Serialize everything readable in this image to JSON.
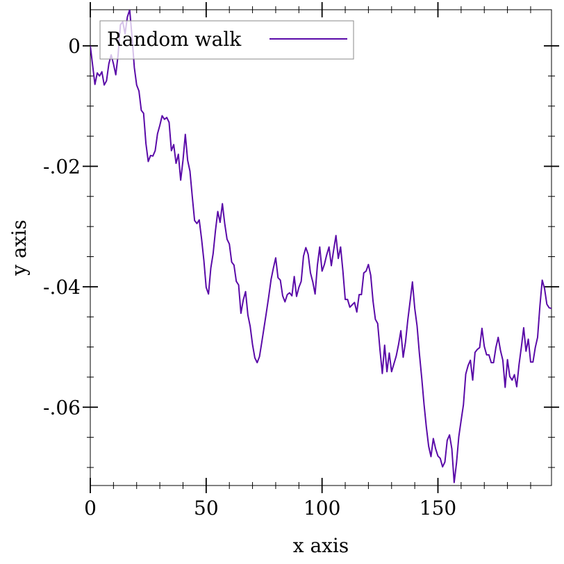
{
  "chart_data": {
    "type": "line",
    "title": "",
    "xlabel": "x axis",
    "ylabel": "y axis",
    "xlim": [
      0,
      199
    ],
    "ylim": [
      -0.073,
      0.006
    ],
    "x_ticks": [
      0,
      50,
      100,
      150
    ],
    "x_tick_labels": [
      "0",
      "50",
      "100",
      "150"
    ],
    "y_ticks": [
      0,
      -0.02,
      -0.04,
      -0.06
    ],
    "y_tick_labels": [
      "0",
      "-.02",
      "-.04",
      "-.06"
    ],
    "grid": false,
    "legend": {
      "position": "top-left",
      "entries": [
        "Random walk"
      ]
    },
    "series": [
      {
        "name": "Random walk",
        "color": "#5a0aa8",
        "x": [
          0,
          2,
          3,
          4,
          5,
          6,
          7,
          8,
          9,
          10,
          11,
          12,
          13,
          14,
          15,
          16,
          17,
          18,
          19,
          20,
          21,
          22,
          23,
          24,
          25,
          26,
          27,
          28,
          29,
          30,
          31,
          32,
          33,
          34,
          35,
          36,
          37,
          38,
          39,
          40,
          41,
          42,
          43,
          44,
          45,
          46,
          47,
          48,
          49,
          50,
          51,
          52,
          53,
          54,
          55,
          56,
          57,
          58,
          59,
          60,
          61,
          62,
          63,
          64,
          65,
          66,
          67,
          68,
          69,
          70,
          71,
          72,
          73,
          74,
          75,
          76,
          77,
          78,
          79,
          80,
          81,
          82,
          83,
          84,
          85,
          86,
          87,
          88,
          89,
          90,
          91,
          92,
          93,
          94,
          95,
          96,
          97,
          98,
          99,
          100,
          101,
          102,
          103,
          104,
          105,
          106,
          107,
          108,
          109,
          110,
          111,
          112,
          113,
          114,
          115,
          116,
          117,
          118,
          119,
          120,
          121,
          122,
          123,
          124,
          125,
          126,
          127,
          128,
          129,
          130,
          131,
          132,
          133,
          134,
          135,
          136,
          137,
          138,
          139,
          140,
          141,
          142,
          143,
          144,
          145,
          146,
          147,
          148,
          149,
          150,
          151,
          152,
          153,
          154,
          155,
          156,
          157,
          158,
          159,
          160,
          161,
          162,
          163,
          164,
          165,
          166,
          167,
          168,
          169,
          170,
          171,
          172,
          173,
          174,
          175,
          176,
          177,
          178,
          179,
          180,
          181,
          182,
          183,
          184,
          185,
          186,
          187,
          188,
          189,
          190,
          191,
          192,
          193,
          194,
          195,
          196,
          197,
          198,
          199
        ],
        "y": [
          0.0,
          -0.0064,
          -0.0045,
          -0.005,
          -0.0043,
          -0.0065,
          -0.0058,
          -0.003,
          -0.0015,
          -0.003,
          -0.0048,
          -0.0015,
          0.0035,
          0.004,
          0.002,
          0.0048,
          0.006,
          0.0015,
          -0.0036,
          -0.0065,
          -0.0075,
          -0.0107,
          -0.0112,
          -0.0162,
          -0.0192,
          -0.0182,
          -0.0183,
          -0.0174,
          -0.0146,
          -0.0132,
          -0.0116,
          -0.0122,
          -0.0119,
          -0.0127,
          -0.0174,
          -0.0164,
          -0.0195,
          -0.018,
          -0.0223,
          -0.019,
          -0.0147,
          -0.019,
          -0.0208,
          -0.025,
          -0.029,
          -0.0295,
          -0.0289,
          -0.032,
          -0.0356,
          -0.0401,
          -0.0412,
          -0.0369,
          -0.0345,
          -0.0307,
          -0.0275,
          -0.0293,
          -0.0262,
          -0.0295,
          -0.0321,
          -0.0329,
          -0.0359,
          -0.0364,
          -0.0391,
          -0.0397,
          -0.0444,
          -0.0422,
          -0.0408,
          -0.0447,
          -0.0466,
          -0.0496,
          -0.0518,
          -0.0526,
          -0.0516,
          -0.0492,
          -0.0467,
          -0.0442,
          -0.0416,
          -0.0388,
          -0.0369,
          -0.0352,
          -0.0385,
          -0.0389,
          -0.0415,
          -0.0425,
          -0.0413,
          -0.041,
          -0.0415,
          -0.0383,
          -0.0416,
          -0.0401,
          -0.0391,
          -0.0349,
          -0.0335,
          -0.0346,
          -0.0377,
          -0.0392,
          -0.0412,
          -0.0364,
          -0.0334,
          -0.0374,
          -0.0363,
          -0.0347,
          -0.0334,
          -0.0365,
          -0.0339,
          -0.0315,
          -0.0353,
          -0.0334,
          -0.0374,
          -0.0421,
          -0.0421,
          -0.0434,
          -0.043,
          -0.0426,
          -0.0442,
          -0.0413,
          -0.0413,
          -0.0377,
          -0.0374,
          -0.0363,
          -0.0381,
          -0.0424,
          -0.0454,
          -0.0461,
          -0.0505,
          -0.0544,
          -0.0497,
          -0.0541,
          -0.051,
          -0.0541,
          -0.0528,
          -0.0515,
          -0.0496,
          -0.0473,
          -0.0517,
          -0.0492,
          -0.0455,
          -0.0424,
          -0.0392,
          -0.0436,
          -0.0465,
          -0.0511,
          -0.0551,
          -0.0595,
          -0.0633,
          -0.0665,
          -0.0682,
          -0.0652,
          -0.0669,
          -0.0681,
          -0.0685,
          -0.0699,
          -0.0691,
          -0.0655,
          -0.0646,
          -0.0669,
          -0.0725,
          -0.0693,
          -0.0649,
          -0.0622,
          -0.0596,
          -0.0545,
          -0.0531,
          -0.0522,
          -0.0555,
          -0.0509,
          -0.0504,
          -0.0501,
          -0.0469,
          -0.0499,
          -0.0513,
          -0.0513,
          -0.0526,
          -0.0526,
          -0.0501,
          -0.0484,
          -0.0506,
          -0.0522,
          -0.0567,
          -0.0521,
          -0.0549,
          -0.0555,
          -0.0546,
          -0.0566,
          -0.0529,
          -0.05,
          -0.0468,
          -0.0507,
          -0.0487,
          -0.0525,
          -0.0525,
          -0.0501,
          -0.0484,
          -0.0432,
          -0.0389,
          -0.0403,
          -0.0429,
          -0.0435,
          -0.0436
        ]
      }
    ]
  }
}
